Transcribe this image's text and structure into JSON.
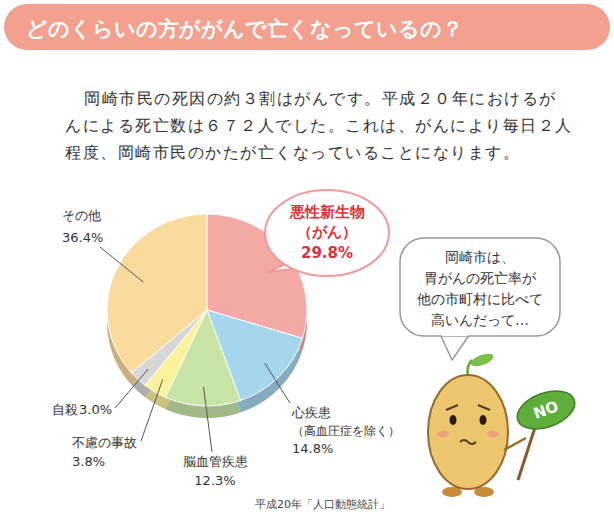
{
  "chart_data": {
    "type": "pie",
    "title": "どのくらいの方ががんで亡くなっているの？",
    "text": [
      "岡崎市民の死因の約３割はがんです。平成２０年におけるが",
      "んによる死亡数は６７２人でした。これは、がんにより毎日２人",
      "程度、岡崎市民のかたが亡くなっていることになります。"
    ],
    "categories": [
      "悪性新生物（がん）",
      "心疾患（高血圧症を除く）",
      "脳血管疾患",
      "不慮の事故",
      "自殺",
      "その他"
    ],
    "values": [
      29.8,
      14.8,
      12.3,
      3.8,
      3.0,
      36.4
    ],
    "value_labels": [
      "29.8%",
      "14.8%",
      "12.3%",
      "3.8%",
      "3.0%",
      "36.4%"
    ],
    "colors": [
      "#f5a9a7",
      "#a6d5ee",
      "#c9e4a7",
      "#fbf39b",
      "#d7d7d7",
      "#fbda9d"
    ],
    "data_labels": true,
    "speech": [
      "岡崎市は、",
      "胃がんの死亡率が",
      "他の市町村に比べて",
      "高いんだって…"
    ],
    "sign": "NO",
    "source": "平成20年「人口動態統計」"
  }
}
